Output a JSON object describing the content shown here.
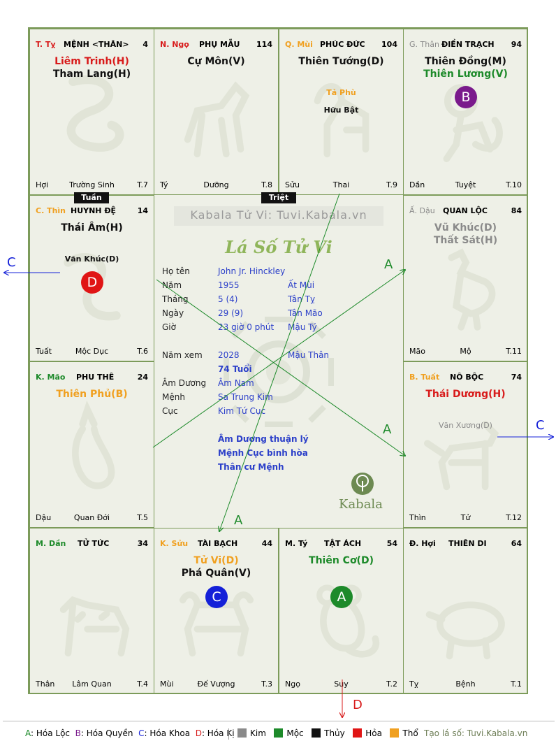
{
  "colors": {
    "red": "#d81b1b",
    "green": "#1d8a2a",
    "orange": "#f0a020",
    "gray": "#8a8a8a",
    "purple": "#7a1a8c",
    "blue": "#1420d8",
    "dark": "#111111",
    "body": "#222222"
  },
  "palaces": {
    "ty_menh": {
      "branch": "T. Tỵ",
      "name": "MỆNH <THÂN>",
      "num": "4",
      "stars": [
        "Liêm Trinh(H)",
        "Tham Lang(H)"
      ],
      "foot": [
        "Hợi",
        "Trường Sinh",
        "T.7"
      ]
    },
    "ngo_phu_mau": {
      "branch": "N. Ngọ",
      "name": "PHỤ MẪU",
      "num": "114",
      "stars": [
        "Cự Môn(V)"
      ],
      "foot": [
        "Tý",
        "Dưỡng",
        "T.8"
      ]
    },
    "mui_phuc_duc": {
      "branch": "Q. Mùi",
      "name": "PHÚC ĐỨC",
      "num": "104",
      "stars": [
        "Thiên Tướng(D)"
      ],
      "minor": [
        "Tả Phù",
        "Hữu Bật"
      ],
      "foot": [
        "Sửu",
        "Thai",
        "T.9"
      ]
    },
    "than_dien_trach": {
      "branch": "G. Thân",
      "name": "ĐIỀN TRẠCH",
      "num": "94",
      "stars": [
        "Thiên Đồng(M)",
        "Thiên Lương(V)"
      ],
      "badge": "B",
      "foot": [
        "Dần",
        "Tuyệt",
        "T.10"
      ]
    },
    "thin_huynh_de": {
      "branch": "C. Thìn",
      "name": "HUYNH ĐỆ",
      "num": "14",
      "stars": [
        "Thái Âm(H)"
      ],
      "minor": [
        "Văn Khúc(D)"
      ],
      "badge": "D",
      "foot": [
        "Tuất",
        "Mộc Dục",
        "T.6"
      ]
    },
    "dau_quan_loc": {
      "branch": "Ấ. Dậu",
      "name": "QUAN LỘC",
      "num": "84",
      "stars": [
        "Vũ Khúc(D)",
        "Thất Sát(H)"
      ],
      "foot": [
        "Mão",
        "Mộ",
        "T.11"
      ]
    },
    "mao_phu_the": {
      "branch": "K. Mão",
      "name": "PHU THÊ",
      "num": "24",
      "stars": [
        "Thiên Phủ(B)"
      ],
      "foot": [
        "Dậu",
        "Quan Đới",
        "T.5"
      ]
    },
    "tuat_no_boc": {
      "branch": "B. Tuất",
      "name": "NÔ BỘC",
      "num": "74",
      "stars": [
        "Thái Dương(H)"
      ],
      "minor": [
        "Văn Xương(D)"
      ],
      "foot": [
        "Thìn",
        "Tử",
        "T.12"
      ]
    },
    "dan_tu_tuc": {
      "branch": "M. Dần",
      "name": "TỬ TỨC",
      "num": "34",
      "stars": [],
      "foot": [
        "Thân",
        "Lâm Quan",
        "T.4"
      ]
    },
    "suu_tai_bach": {
      "branch": "K. Sửu",
      "name": "TÀI BẠCH",
      "num": "44",
      "stars": [
        "Tử Vi(D)",
        "Phá Quân(V)"
      ],
      "badge": "C",
      "foot": [
        "Mùi",
        "Đế Vượng",
        "T.3"
      ]
    },
    "ty_tat_ach": {
      "branch": "M. Tý",
      "name": "TẬT ÁCH",
      "num": "54",
      "stars": [
        "Thiên Cơ(D)"
      ],
      "badge": "A",
      "foot": [
        "Ngọ",
        "Suy",
        "T.2"
      ]
    },
    "hoi_thien_di": {
      "branch": "Đ. Hợi",
      "name": "THIÊN DI",
      "num": "64",
      "stars": [],
      "foot": [
        "Tỵ",
        "Bệnh",
        "T.1"
      ]
    }
  },
  "tags": {
    "tuan": "Tuần",
    "triet": "Triệt"
  },
  "center": {
    "watermark": "Kabala Tử Vi: Tuvi.Kabala.vn",
    "title": "Lá Số Tử Vi",
    "rows": [
      {
        "label": "Họ tên",
        "value": "John Jr. Hinckley",
        "extra": ""
      },
      {
        "label": "Năm",
        "value": "1955",
        "extra": "Ất Mùi"
      },
      {
        "label": "Tháng",
        "value": "5  (4)",
        "extra": "Tân Tỵ"
      },
      {
        "label": "Ngày",
        "value": "29  (9)",
        "extra": "Tân Mão"
      },
      {
        "label": "Giờ",
        "value": "23 giờ 0 phút",
        "extra": "Mậu Tý"
      }
    ],
    "nam_xem": {
      "label": "Năm xem",
      "value": "2028",
      "extra": "Mậu Thân"
    },
    "tuoi": "74 Tuổi",
    "rows2": [
      {
        "label": "Âm Dương",
        "value": "Âm Nam"
      },
      {
        "label": "Mệnh",
        "value": "Sa Trung Kim"
      },
      {
        "label": "Cục",
        "value": "Kim Tứ Cục"
      }
    ],
    "notes": [
      "Âm Dương thuận lý",
      "Mệnh Cục bình hòa",
      "Thân cư Mệnh"
    ],
    "logo": "Kabala"
  },
  "arrows": {
    "a": "A",
    "c": "C",
    "d": "D"
  },
  "legend": {
    "hoa": [
      {
        "key": "A",
        "text": "Hóa Lộc",
        "color": "#1d8a2a"
      },
      {
        "key": "B",
        "text": "Hóa Quyền",
        "color": "#7a1a8c"
      },
      {
        "key": "C",
        "text": "Hóa Khoa",
        "color": "#1420d8"
      },
      {
        "key": "D",
        "text": "Hóa Kị",
        "color": "#d81b1b"
      }
    ],
    "elements": [
      {
        "text": "Kim",
        "color": "#8a8a8a"
      },
      {
        "text": "Mộc",
        "color": "#1d8a2a"
      },
      {
        "text": "Thủy",
        "color": "#111111"
      },
      {
        "text": "Hỏa",
        "color": "#d81b1b"
      },
      {
        "text": "Thổ",
        "color": "#f0a020"
      }
    ],
    "credit": "Tạo lá số: Tuvi.Kabala.vn"
  }
}
